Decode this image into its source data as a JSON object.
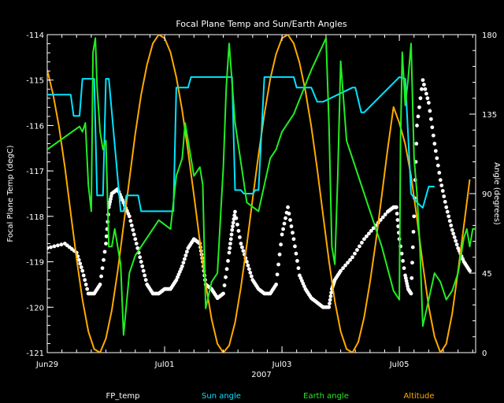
{
  "chart_data": {
    "type": "line",
    "title": "Focal Plane Temp and Sun/Earth Angles",
    "xlabel": "2007",
    "ylabel_left": "Focal Plane Temp (degC)",
    "ylabel_right": "Angle (degrees)",
    "x_range_days": [
      0,
      7.3
    ],
    "ylim_left": [
      -121,
      -114
    ],
    "ylim_right": [
      0,
      180
    ],
    "x_ticks": [
      {
        "day": 0,
        "label": "Jun29"
      },
      {
        "day": 2,
        "label": "Jul01"
      },
      {
        "day": 4,
        "label": "Jul03"
      },
      {
        "day": 6,
        "label": "Jul05"
      }
    ],
    "y_ticks_left": [
      "-114",
      "-115",
      "-116",
      "-117",
      "-118",
      "-119",
      "-120",
      "-121"
    ],
    "y_ticks_right": [
      "0",
      "45",
      "90",
      "135",
      "180"
    ],
    "legend": [
      {
        "name": "FP_temp",
        "color": "#ffffff"
      },
      {
        "name": "Sun angle",
        "color": "#00e5ff"
      },
      {
        "name": "Earth angle",
        "color": "#22ee22"
      },
      {
        "name": "Altitude",
        "color": "#ffaa00"
      }
    ],
    "series": [
      {
        "name": "FP_temp",
        "axis": "left",
        "style": "points",
        "color": "#ffffff",
        "x": [
          0.0,
          0.3,
          0.5,
          0.6,
          0.7,
          0.8,
          0.9,
          1.0,
          1.05,
          1.1,
          1.2,
          1.3,
          1.4,
          1.5,
          1.6,
          1.7,
          1.8,
          1.9,
          2.0,
          2.1,
          2.2,
          2.3,
          2.4,
          2.5,
          2.6,
          2.65,
          2.7,
          2.8,
          2.9,
          3.0,
          3.1,
          3.15,
          3.2,
          3.3,
          3.4,
          3.5,
          3.6,
          3.7,
          3.8,
          3.9,
          4.0,
          4.1,
          4.2,
          4.3,
          4.4,
          4.5,
          4.6,
          4.7,
          4.8,
          4.85,
          4.9,
          5.0,
          5.2,
          5.4,
          5.6,
          5.8,
          5.9,
          5.95,
          6.0,
          6.1,
          6.15,
          6.2,
          6.25,
          6.3,
          6.4,
          6.5,
          6.6,
          6.7,
          6.8,
          6.9,
          7.0,
          7.1,
          7.2
        ],
        "values": [
          -118.7,
          -118.6,
          -118.8,
          -119.2,
          -119.7,
          -119.7,
          -119.5,
          -118.6,
          -117.8,
          -117.5,
          -117.4,
          -117.7,
          -118.0,
          -118.5,
          -119.0,
          -119.5,
          -119.7,
          -119.7,
          -119.6,
          -119.6,
          -119.4,
          -119.1,
          -118.7,
          -118.5,
          -118.6,
          -119.0,
          -119.5,
          -119.6,
          -119.8,
          -119.7,
          -118.8,
          -118.3,
          -117.9,
          -118.6,
          -119.0,
          -119.4,
          -119.6,
          -119.7,
          -119.7,
          -119.5,
          -118.4,
          -117.8,
          -118.5,
          -119.3,
          -119.6,
          -119.8,
          -119.9,
          -120.0,
          -120.0,
          -119.6,
          -119.4,
          -119.2,
          -118.9,
          -118.5,
          -118.2,
          -117.9,
          -117.8,
          -117.8,
          -118.5,
          -119.3,
          -119.6,
          -119.7,
          -118.0,
          -116.0,
          -115.0,
          -115.5,
          -116.4,
          -117.2,
          -117.8,
          -118.3,
          -118.7,
          -119.0,
          -119.2
        ]
      },
      {
        "name": "Sun angle",
        "axis": "right",
        "style": "line",
        "color": "#00e5ff",
        "x": [
          0.0,
          0.4,
          0.45,
          0.55,
          0.6,
          0.8,
          0.85,
          0.95,
          1.0,
          1.05,
          1.25,
          1.3,
          1.35,
          1.55,
          1.6,
          2.15,
          2.2,
          2.4,
          2.45,
          3.15,
          3.2,
          3.3,
          3.35,
          3.5,
          3.55,
          3.6,
          3.7,
          4.2,
          4.25,
          4.5,
          4.6,
          4.7,
          5.2,
          5.25,
          5.35,
          5.4,
          6.0,
          6.1,
          6.2,
          6.3,
          6.4,
          6.5,
          6.6
        ],
        "values": [
          146,
          146,
          134,
          134,
          155,
          155,
          89,
          89,
          155,
          155,
          80,
          80,
          89,
          89,
          80,
          80,
          150,
          150,
          156,
          156,
          92,
          92,
          90,
          90,
          92,
          92,
          156,
          156,
          150,
          150,
          142,
          142,
          150,
          150,
          136,
          136,
          156,
          155,
          90,
          85,
          82,
          94,
          94
        ]
      },
      {
        "name": "Earth angle",
        "axis": "right",
        "style": "line",
        "color": "#22ee22",
        "x": [
          0.0,
          0.55,
          0.6,
          0.65,
          0.7,
          0.75,
          0.78,
          0.82,
          0.85,
          0.9,
          0.95,
          1.0,
          1.05,
          1.1,
          1.15,
          1.25,
          1.3,
          1.4,
          1.5,
          1.6,
          1.7,
          1.8,
          1.9,
          2.1,
          2.2,
          2.3,
          2.35,
          2.5,
          2.6,
          2.65,
          2.7,
          2.8,
          2.9,
          2.95,
          3.0,
          3.05,
          3.1,
          3.2,
          3.4,
          3.6,
          3.7,
          3.8,
          3.9,
          4.0,
          4.2,
          4.5,
          4.75,
          4.8,
          4.85,
          4.9,
          4.95,
          5.0,
          5.1,
          5.3,
          5.5,
          5.7,
          5.9,
          6.0,
          6.02,
          6.05,
          6.1,
          6.15,
          6.2,
          6.25,
          6.3,
          6.35,
          6.4,
          6.5,
          6.6,
          6.7,
          6.8,
          6.9,
          7.0,
          7.05,
          7.1,
          7.15,
          7.2,
          7.25,
          7.3
        ],
        "values": [
          115,
          128,
          125,
          130,
          95,
          80,
          170,
          178,
          150,
          125,
          115,
          120,
          60,
          60,
          70,
          50,
          10,
          45,
          55,
          60,
          65,
          70,
          75,
          70,
          100,
          110,
          130,
          100,
          105,
          95,
          25,
          40,
          45,
          75,
          105,
          150,
          175,
          130,
          85,
          80,
          95,
          110,
          115,
          125,
          135,
          160,
          178,
          130,
          60,
          50,
          100,
          165,
          120,
          100,
          80,
          60,
          35,
          30,
          120,
          170,
          140,
          155,
          175,
          110,
          90,
          60,
          15,
          30,
          45,
          40,
          30,
          35,
          45,
          55,
          65,
          70,
          60,
          70,
          70
        ]
      },
      {
        "name": "Altitude",
        "axis": "right",
        "style": "line",
        "color": "#ffaa00",
        "x": [
          0,
          0.1,
          0.2,
          0.3,
          0.4,
          0.5,
          0.6,
          0.7,
          0.8,
          0.9,
          1.0,
          1.1,
          1.2,
          1.3,
          1.4,
          1.5,
          1.6,
          1.7,
          1.8,
          1.9,
          2.0,
          2.1,
          2.2,
          2.3,
          2.4,
          2.5,
          2.6,
          2.7,
          2.8,
          2.9,
          3.0,
          3.1,
          3.2,
          3.3,
          3.4,
          3.5,
          3.6,
          3.7,
          3.8,
          3.9,
          4.0,
          4.1,
          4.2,
          4.3,
          4.4,
          4.5,
          4.6,
          4.7,
          4.8,
          4.9,
          5.0,
          5.1,
          5.2,
          5.3,
          5.4,
          5.5,
          5.6,
          5.7,
          5.8,
          5.9,
          6.0,
          6.1,
          6.2,
          6.3,
          6.4,
          6.5,
          6.6,
          6.7,
          6.8,
          6.9,
          7.0,
          7.1,
          7.2
        ],
        "values": [
          160,
          146,
          128,
          105,
          79,
          53,
          30,
          12,
          2,
          0,
          8,
          24,
          46,
          72,
          98,
          124,
          146,
          163,
          175,
          180,
          178,
          170,
          156,
          137,
          114,
          89,
          63,
          39,
          19,
          5,
          0,
          4,
          17,
          37,
          61,
          87,
          112,
          135,
          155,
          169,
          178,
          180,
          175,
          164,
          148,
          128,
          104,
          78,
          52,
          29,
          12,
          2,
          0,
          6,
          20,
          40,
          63,
          89,
          115,
          139,
          130,
          118,
          100,
          76,
          50,
          26,
          9,
          0,
          5,
          22,
          46,
          72,
          98
        ]
      }
    ]
  }
}
